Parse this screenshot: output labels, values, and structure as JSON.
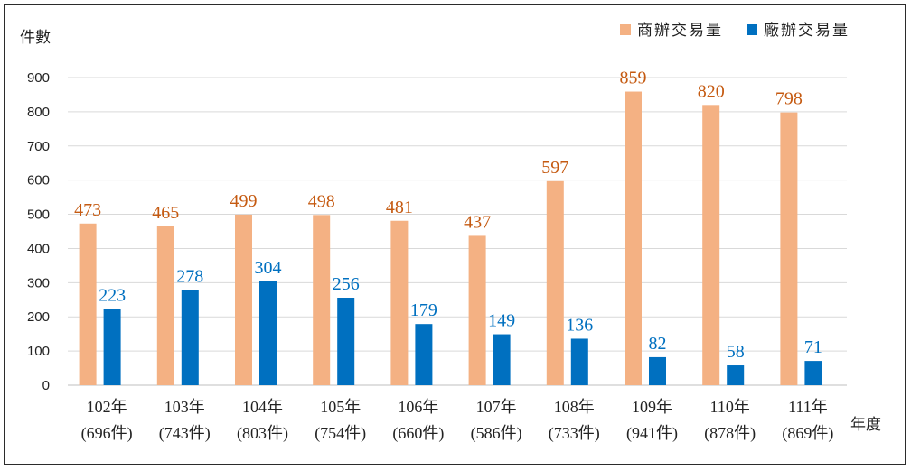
{
  "chart_data": {
    "type": "bar",
    "ylabel": "件數",
    "xlabel": "年度",
    "ylim": [
      0,
      900
    ],
    "yticks": [
      "0",
      "100",
      "200",
      "300",
      "400",
      "500",
      "600",
      "700",
      "800",
      "900"
    ],
    "grid": true,
    "legend_position": "top-right",
    "categories": [
      {
        "year": "102年",
        "total": "(696件)"
      },
      {
        "year": "103年",
        "total": "(743件)"
      },
      {
        "year": "104年",
        "total": "(803件)"
      },
      {
        "year": "105年",
        "total": "(754件)"
      },
      {
        "year": "106年",
        "total": "(660件)"
      },
      {
        "year": "107年",
        "total": "(586件)"
      },
      {
        "year": "108年",
        "total": "(733件)"
      },
      {
        "year": "109年",
        "total": "(941件)"
      },
      {
        "year": "110年",
        "total": "(878件)"
      },
      {
        "year": "111年",
        "total": "(869件)"
      }
    ],
    "series": [
      {
        "name": "商辦交易量",
        "color": "#F4B183",
        "label_color": "#C55A11",
        "values": [
          473,
          465,
          499,
          498,
          481,
          437,
          597,
          859,
          820,
          798
        ]
      },
      {
        "name": "廠辦交易量",
        "color": "#0070C0",
        "label_color": "#0070C0",
        "values": [
          223,
          278,
          304,
          256,
          179,
          149,
          136,
          82,
          58,
          71
        ]
      }
    ]
  }
}
